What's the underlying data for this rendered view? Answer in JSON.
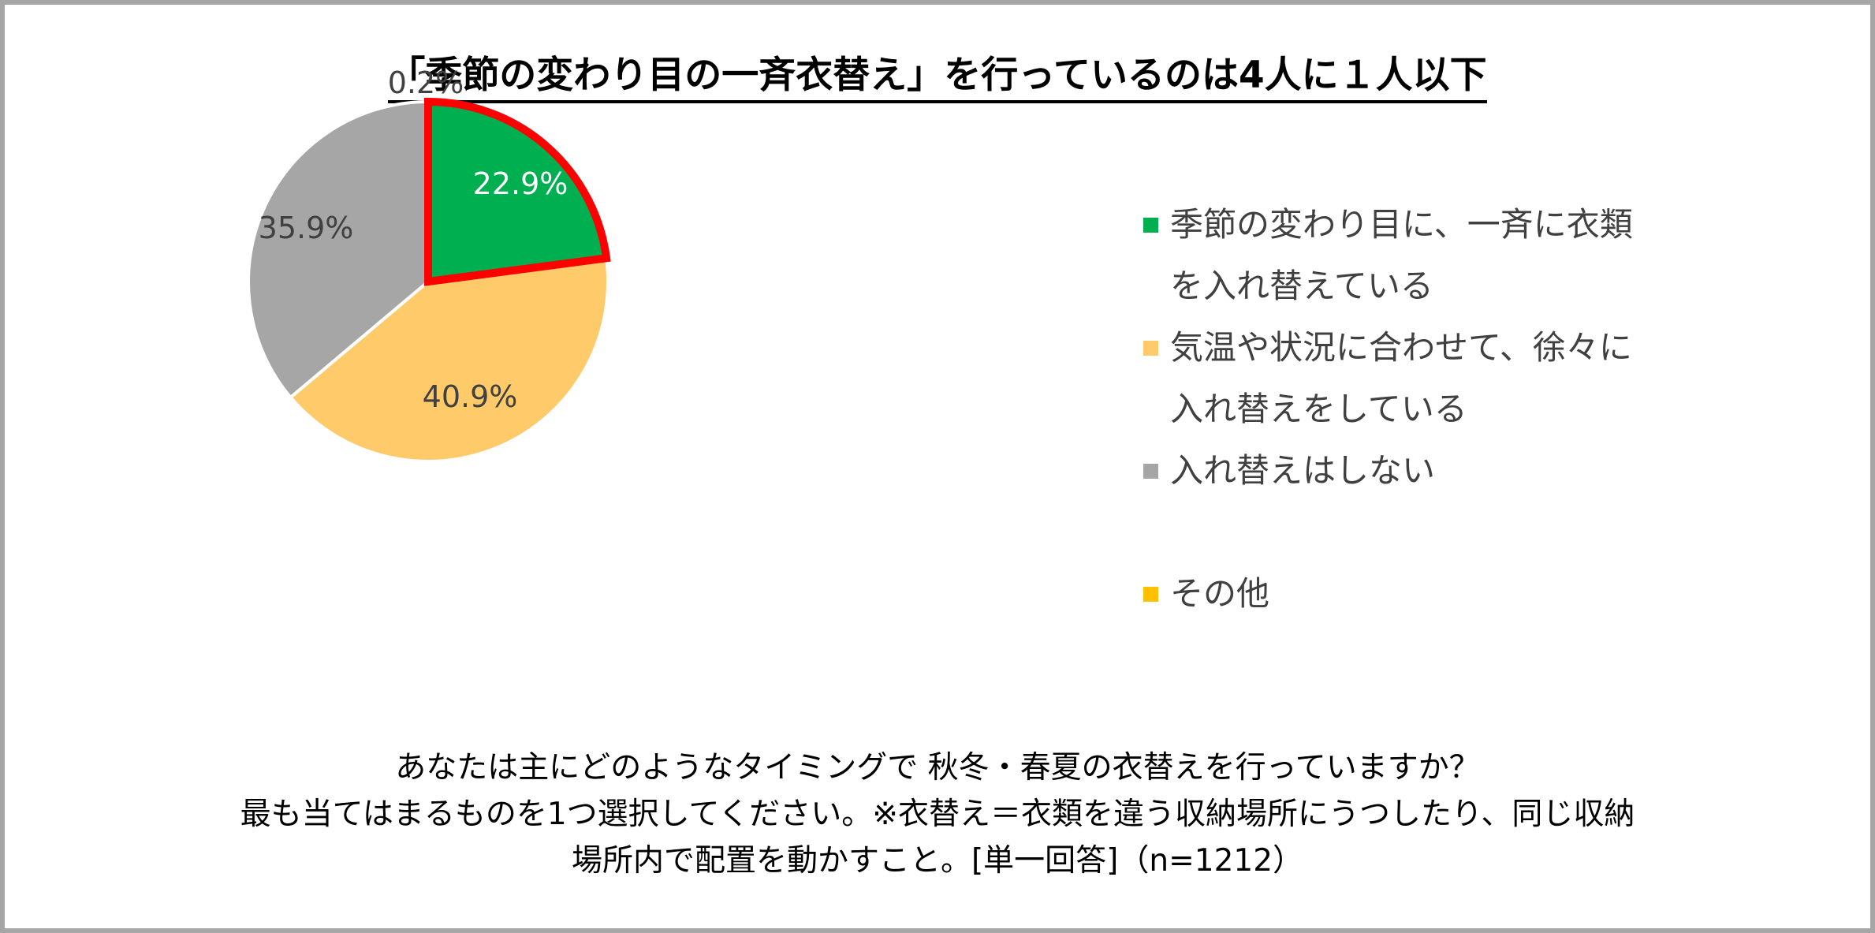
{
  "title": "「季節の変わり目の一斉衣替え」を行っているのは4人に１人以下",
  "question_lines": [
    "あなたは主にどのようなタイミングで 秋冬・春夏の衣替えを行っていますか？",
    "最も当てはまるものを1つ選択してください。※衣替え＝衣類を違う収納場所にうつしたり、同じ収納",
    "場所内で配置を動かすこと。[単一回答]（n=1212）"
  ],
  "chart_data": {
    "type": "pie",
    "start_angle_deg": 0,
    "direction": "clockwise",
    "slices": [
      {
        "label": "季節の変わり目に、一斉に衣類を入れ替えている",
        "legend_lines": [
          "季節の変わり目に、一斉に衣類",
          "を入れ替えている"
        ],
        "value": 22.9,
        "value_label": "22.9%",
        "color": "#00b050",
        "label_color": "#ffffff",
        "highlight": true,
        "highlight_color": "#ff0000"
      },
      {
        "label": "気温や状況に合わせて、徐々に入れ替えをしている",
        "legend_lines": [
          "気温や状況に合わせて、徐々に",
          "入れ替えをしている"
        ],
        "value": 40.9,
        "value_label": "40.9%",
        "color": "#ffca69",
        "label_color": "#404040"
      },
      {
        "label": "入れ替えはしない",
        "legend_lines": [
          "入れ替えはしない"
        ],
        "value": 35.9,
        "value_label": "35.9%",
        "color": "#a6a6a6",
        "label_color": "#404040"
      },
      {
        "label": "その他",
        "legend_lines": [
          "その他"
        ],
        "value": 0.2,
        "value_label": "0.2%",
        "color": "#ffc000",
        "label_color": "#404040",
        "label_outside": true
      }
    ],
    "legend_position": "right"
  }
}
